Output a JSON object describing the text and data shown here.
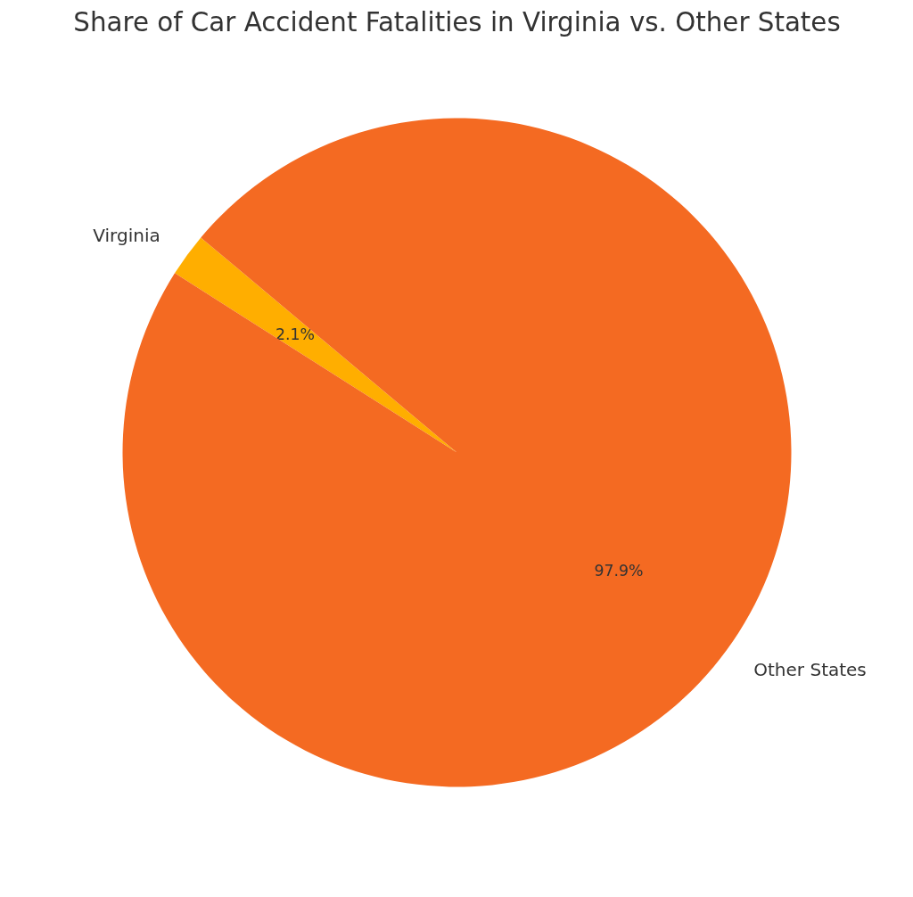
{
  "chart_data": {
    "type": "pie",
    "title": "Share of Car Accident Fatalities in Virginia vs. Other States",
    "categories": [
      "Virginia",
      "Other States"
    ],
    "values": [
      2.1,
      97.9
    ],
    "colors": [
      "#ffae00",
      "#f46a22"
    ],
    "value_labels": [
      "2.1%",
      "97.9%"
    ]
  }
}
